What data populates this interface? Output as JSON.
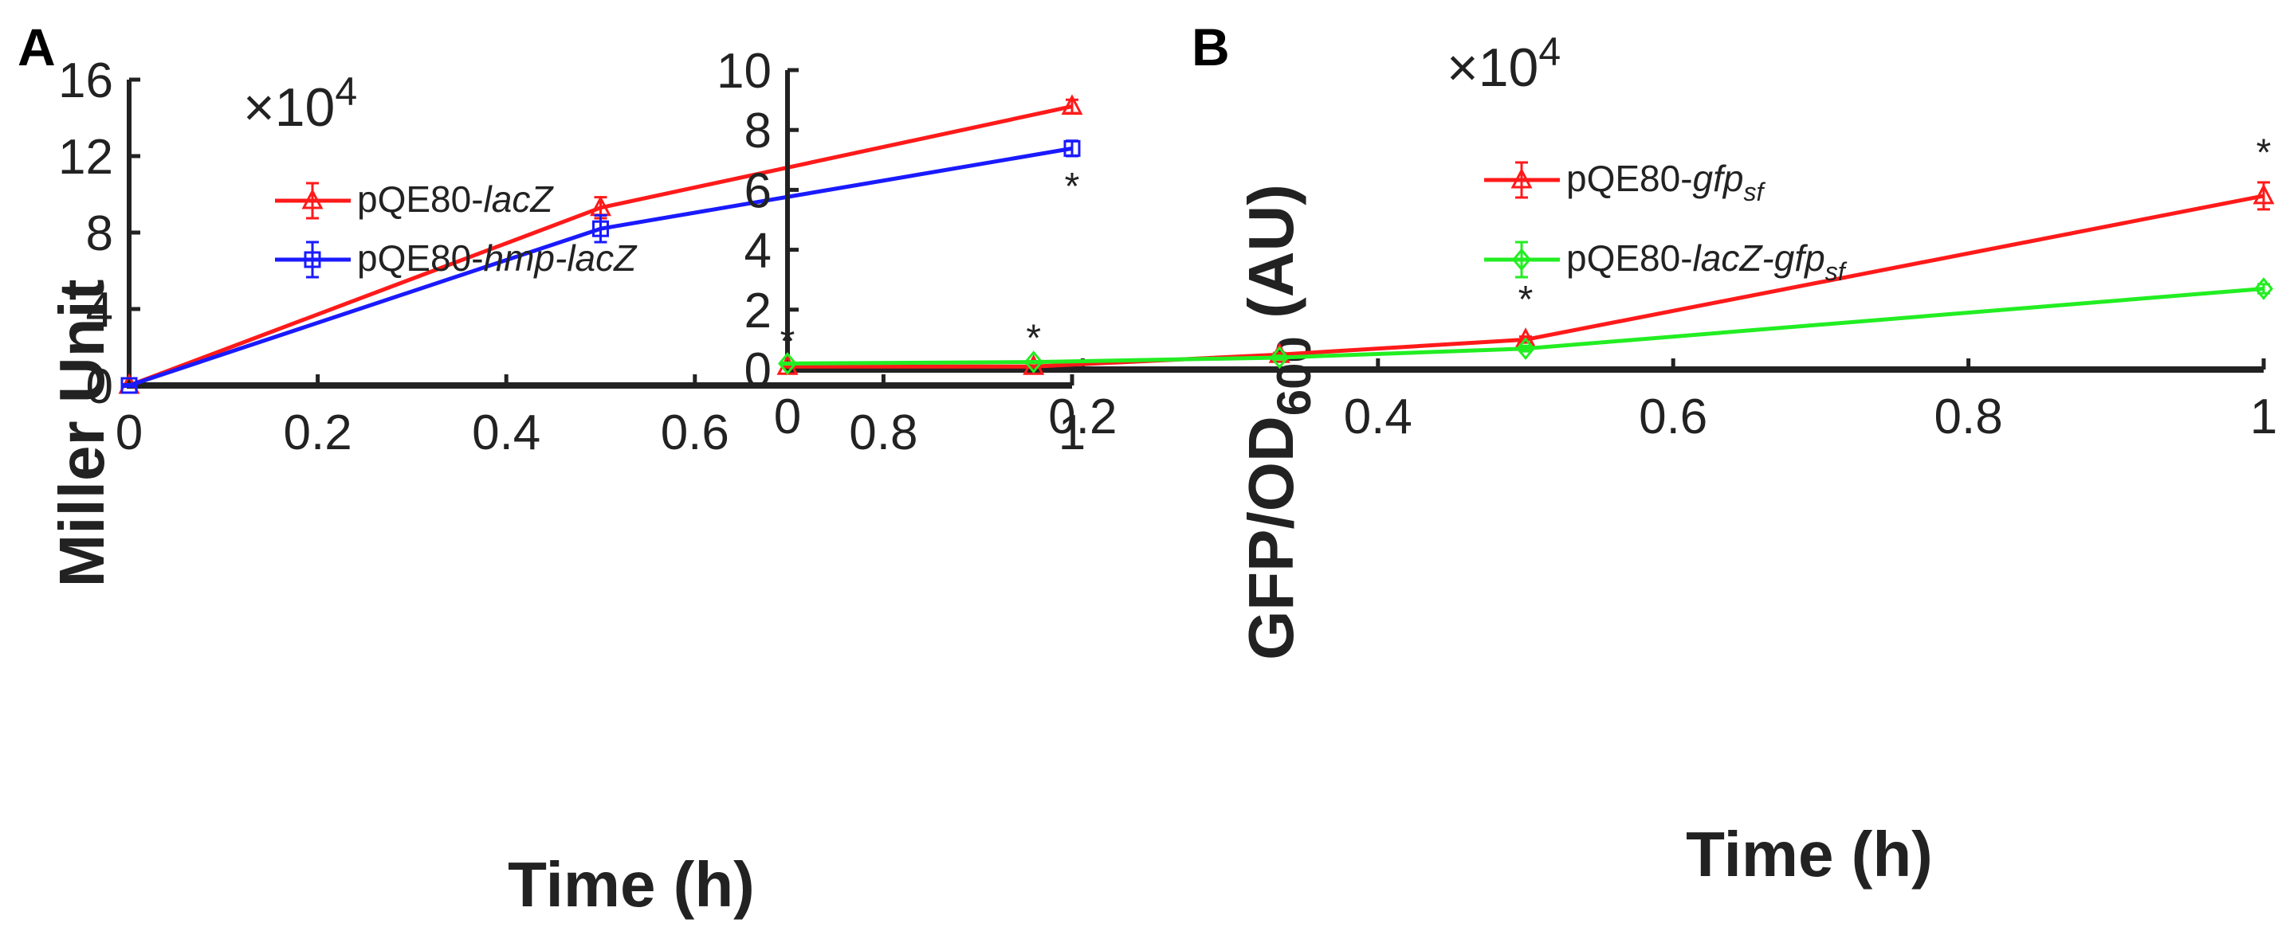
{
  "chart_data": [
    {
      "panel": "A",
      "type": "line",
      "multiplier": "×10",
      "multiplier_exp": "4",
      "xlabel": "Time (h)",
      "ylabel": "Miller Unit",
      "xlim": [
        0,
        1
      ],
      "ylim": [
        0,
        160000
      ],
      "xticks": [
        0,
        0.2,
        0.4,
        0.6,
        0.8,
        1
      ],
      "xtick_labels": [
        "0",
        "0.2",
        "0.4",
        "0.6",
        "0.8",
        "1"
      ],
      "yticks": [
        0,
        40000,
        80000,
        120000,
        160000
      ],
      "ytick_labels": [
        "0",
        "4",
        "8",
        "12",
        "16"
      ],
      "legend_position": "top-left",
      "series": [
        {
          "name_prefix": "pQE80-",
          "name_italic": "lacZ",
          "name_suffix": "",
          "color": "#ff1a1a",
          "marker": "triangle",
          "x": [
            0,
            0.5,
            1
          ],
          "y": [
            0,
            93000,
            146000
          ],
          "err": [
            600,
            5500,
            3500
          ]
        },
        {
          "name_prefix": "pQE80-",
          "name_italic": "hmp-lacZ",
          "name_suffix": "",
          "color": "#1a1aff",
          "marker": "square",
          "x": [
            0,
            0.5,
            1
          ],
          "y": [
            0,
            82000,
            124000
          ],
          "err": [
            600,
            7000,
            4000
          ]
        }
      ],
      "annotations": [
        {
          "text": "*",
          "x": 1,
          "y": 105000
        }
      ]
    },
    {
      "panel": "B",
      "type": "line",
      "multiplier": "×10",
      "multiplier_exp": "4",
      "xlabel": "Time (h)",
      "ylabel": "GFP/OD",
      "ylabel_sub": "600",
      "ylabel_suffix": " (AU)",
      "xlim": [
        0,
        1
      ],
      "ylim": [
        0,
        100000
      ],
      "xticks": [
        0,
        0.2,
        0.4,
        0.6,
        0.8,
        1
      ],
      "xtick_labels": [
        "0",
        "0.2",
        "0.4",
        "0.6",
        "0.8",
        "1"
      ],
      "yticks": [
        0,
        20000,
        40000,
        60000,
        80000,
        100000
      ],
      "ytick_labels": [
        "0",
        "2",
        "4",
        "6",
        "8",
        "10"
      ],
      "legend_position": "top-left",
      "series": [
        {
          "name_prefix": "pQE80-",
          "name_italic": "gfp",
          "name_sub": "sf",
          "color": "#ff1a1a",
          "marker": "triangle",
          "x": [
            0,
            0.1667,
            0.3333,
            0.5,
            1
          ],
          "y": [
            1000,
            1000,
            5000,
            10000,
            58000
          ],
          "err": [
            300,
            300,
            600,
            1000,
            4500
          ]
        },
        {
          "name_prefix": "pQE80-",
          "name_italic": "lacZ-gfp",
          "name_sub": "sf",
          "color": "#22ee22",
          "marker": "diamond",
          "x": [
            0,
            0.1667,
            0.3333,
            0.5,
            1
          ],
          "y": [
            2000,
            2500,
            4000,
            7000,
            27000
          ],
          "err": [
            300,
            300,
            600,
            900,
            1500
          ]
        }
      ],
      "annotations": [
        {
          "text": "*",
          "x": 0,
          "y": 10000
        },
        {
          "text": "*",
          "x": 0.1667,
          "y": 11000
        },
        {
          "text": "*",
          "x": 0.5,
          "y": 24000
        },
        {
          "text": "*",
          "x": 1,
          "y": 73000
        }
      ]
    }
  ]
}
